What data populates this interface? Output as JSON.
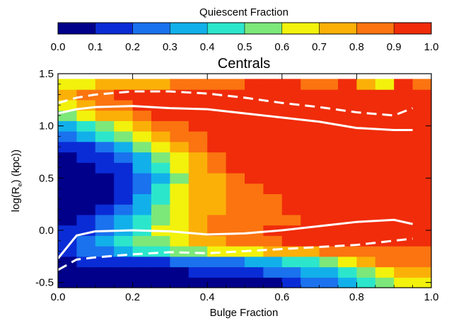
{
  "chart_data": {
    "type": "heatmap",
    "title": "Centrals",
    "xlabel": "Bulge Fraction",
    "ylabel": "log(R",
    "ylabel_sub": "e",
    "ylabel_tail": ") (kpc))",
    "xlim": [
      0.0,
      1.0
    ],
    "ylim": [
      -0.55,
      1.5
    ],
    "x_ticks": [
      "0.0",
      "0.2",
      "0.4",
      "0.6",
      "0.8",
      "1.0"
    ],
    "y_ticks": [
      "-0.5",
      "0.0",
      "0.5",
      "1.0",
      "1.5"
    ],
    "colorbar": {
      "title": "Quiescent Fraction",
      "ticks": [
        "0.0",
        "0.1",
        "0.2",
        "0.3",
        "0.4",
        "0.5",
        "0.6",
        "0.7",
        "0.8",
        "0.9",
        "1.0"
      ],
      "levels": [
        0.0,
        0.1,
        0.2,
        0.3,
        0.4,
        0.5,
        0.6,
        0.7,
        0.8,
        0.9,
        1.0
      ],
      "colors": [
        "#00008b",
        "#0a2cd6",
        "#1a72ee",
        "#12b0ea",
        "#2ce6cc",
        "#7ce87a",
        "#f2f20c",
        "#fbb008",
        "#fb7410",
        "#f02c0a",
        "#c20707"
      ]
    },
    "grid_x_bulge_fraction": [
      0.0,
      0.05,
      0.1,
      0.15,
      0.2,
      0.25,
      0.3,
      0.35,
      0.4,
      0.45,
      0.5,
      0.55,
      0.6,
      0.65,
      0.7,
      0.75,
      0.8,
      0.85,
      0.9,
      0.95
    ],
    "grid_y_log_re": [
      -0.5,
      -0.4,
      -0.3,
      -0.2,
      -0.1,
      0.0,
      0.1,
      0.2,
      0.3,
      0.4,
      0.5,
      0.6,
      0.7,
      0.8,
      0.9,
      1.0,
      1.1,
      1.2,
      1.3,
      1.4
    ],
    "quiescent_fraction_rows": [
      [
        0.02,
        0.02,
        0.03,
        0.03,
        0.04,
        0.05,
        0.05,
        0.06,
        0.06,
        0.07,
        0.08,
        0.09,
        0.15,
        0.2,
        0.25,
        0.35,
        0.45,
        0.55,
        0.62,
        0.65
      ],
      [
        0.05,
        0.05,
        0.06,
        0.06,
        0.07,
        0.08,
        0.09,
        0.1,
        0.12,
        0.15,
        0.18,
        0.22,
        0.26,
        0.32,
        0.38,
        0.42,
        0.55,
        0.65,
        0.72,
        0.75
      ],
      [
        0.08,
        0.1,
        0.12,
        0.14,
        0.16,
        0.18,
        0.2,
        0.22,
        0.25,
        0.28,
        0.32,
        0.36,
        0.42,
        0.48,
        0.55,
        0.65,
        0.75,
        0.8,
        0.82,
        0.82
      ],
      [
        0.15,
        0.2,
        0.28,
        0.36,
        0.42,
        0.48,
        0.52,
        0.56,
        0.6,
        0.63,
        0.67,
        0.7,
        0.74,
        0.78,
        0.82,
        0.84,
        0.86,
        0.87,
        0.88,
        0.88
      ],
      [
        0.18,
        0.24,
        0.32,
        0.42,
        0.5,
        0.58,
        0.64,
        0.72,
        0.78,
        0.82,
        0.86,
        0.88,
        0.9,
        0.9,
        0.9,
        0.9,
        0.9,
        0.9,
        0.9,
        0.9
      ],
      [
        0.12,
        0.18,
        0.28,
        0.38,
        0.48,
        0.6,
        0.68,
        0.75,
        0.8,
        0.84,
        0.88,
        0.9,
        0.9,
        0.9,
        0.9,
        0.9,
        0.9,
        0.9,
        0.9,
        0.9
      ],
      [
        0.08,
        0.12,
        0.2,
        0.3,
        0.45,
        0.56,
        0.66,
        0.74,
        0.8,
        0.83,
        0.85,
        0.87,
        0.89,
        0.9,
        0.9,
        0.9,
        0.9,
        0.9,
        0.9,
        0.9
      ],
      [
        0.05,
        0.07,
        0.12,
        0.2,
        0.35,
        0.5,
        0.64,
        0.73,
        0.79,
        0.83,
        0.86,
        0.88,
        0.9,
        0.9,
        0.9,
        0.9,
        0.9,
        0.9,
        0.9,
        0.9
      ],
      [
        0.03,
        0.05,
        0.08,
        0.15,
        0.3,
        0.42,
        0.62,
        0.72,
        0.78,
        0.82,
        0.85,
        0.88,
        0.9,
        0.9,
        0.9,
        0.9,
        0.9,
        0.9,
        0.9,
        0.9
      ],
      [
        0.02,
        0.04,
        0.07,
        0.14,
        0.28,
        0.4,
        0.6,
        0.72,
        0.78,
        0.83,
        0.86,
        0.9,
        0.9,
        0.9,
        0.9,
        0.9,
        0.9,
        0.9,
        0.9,
        0.9
      ],
      [
        0.02,
        0.04,
        0.07,
        0.14,
        0.27,
        0.38,
        0.58,
        0.72,
        0.79,
        0.86,
        0.9,
        0.9,
        0.9,
        0.9,
        0.9,
        0.9,
        0.9,
        0.9,
        0.9,
        0.9
      ],
      [
        0.02,
        0.05,
        0.1,
        0.18,
        0.3,
        0.42,
        0.6,
        0.74,
        0.84,
        0.9,
        0.9,
        0.9,
        0.9,
        0.9,
        0.9,
        0.9,
        0.9,
        0.9,
        0.9,
        0.9
      ],
      [
        0.05,
        0.1,
        0.17,
        0.26,
        0.38,
        0.5,
        0.65,
        0.78,
        0.88,
        0.9,
        0.9,
        0.9,
        0.9,
        0.9,
        0.9,
        0.9,
        0.9,
        0.9,
        0.9,
        0.9
      ],
      [
        0.1,
        0.18,
        0.28,
        0.38,
        0.5,
        0.62,
        0.74,
        0.84,
        0.9,
        0.9,
        0.9,
        0.9,
        0.9,
        0.9,
        0.9,
        0.9,
        0.9,
        0.9,
        0.9,
        0.9
      ],
      [
        0.2,
        0.3,
        0.4,
        0.52,
        0.64,
        0.74,
        0.82,
        0.88,
        0.9,
        0.9,
        0.9,
        0.9,
        0.9,
        0.9,
        0.9,
        0.9,
        0.9,
        0.9,
        0.9,
        0.9
      ],
      [
        0.35,
        0.45,
        0.56,
        0.66,
        0.75,
        0.82,
        0.88,
        0.9,
        0.9,
        0.9,
        0.9,
        0.9,
        0.9,
        0.9,
        0.9,
        0.9,
        0.9,
        0.9,
        0.9,
        0.9
      ],
      [
        0.5,
        0.6,
        0.7,
        0.78,
        0.85,
        0.9,
        0.9,
        0.9,
        0.9,
        0.9,
        0.9,
        0.9,
        0.9,
        0.9,
        0.9,
        0.9,
        0.9,
        0.9,
        0.9,
        0.9
      ],
      [
        0.6,
        0.72,
        0.82,
        0.88,
        0.9,
        0.9,
        0.9,
        0.9,
        0.9,
        0.9,
        0.9,
        0.9,
        0.9,
        0.9,
        0.9,
        0.9,
        0.9,
        0.9,
        0.9,
        0.9
      ],
      [
        0.7,
        0.8,
        0.85,
        0.9,
        0.9,
        0.9,
        0.9,
        0.9,
        0.9,
        0.9,
        0.9,
        0.9,
        0.9,
        0.9,
        0.9,
        0.9,
        0.9,
        0.9,
        0.9,
        0.9
      ],
      [
        0.6,
        0.65,
        0.7,
        0.72,
        0.75,
        0.78,
        0.8,
        0.82,
        0.85,
        0.88,
        0.9,
        0.9,
        0.9,
        0.88,
        0.86,
        0.9,
        0.75,
        0.6,
        0.9,
        0.8
      ]
    ],
    "overlay_lines": [
      {
        "style": "solid",
        "color": "#ffffff",
        "x": [
          0.0,
          0.05,
          0.1,
          0.2,
          0.3,
          0.4,
          0.5,
          0.6,
          0.7,
          0.8,
          0.9,
          0.95
        ],
        "y": [
          1.12,
          1.16,
          1.18,
          1.19,
          1.17,
          1.16,
          1.12,
          1.08,
          1.04,
          0.98,
          0.96,
          0.96
        ]
      },
      {
        "style": "dashed",
        "color": "#ffffff",
        "x": [
          0.0,
          0.05,
          0.1,
          0.2,
          0.3,
          0.4,
          0.5,
          0.6,
          0.7,
          0.8,
          0.9,
          0.95
        ],
        "y": [
          1.22,
          1.27,
          1.3,
          1.33,
          1.33,
          1.31,
          1.27,
          1.22,
          1.18,
          1.13,
          1.1,
          1.17
        ]
      },
      {
        "style": "solid",
        "color": "#ffffff",
        "x": [
          0.0,
          0.05,
          0.1,
          0.2,
          0.3,
          0.4,
          0.5,
          0.6,
          0.7,
          0.8,
          0.9,
          0.95
        ],
        "y": [
          -0.27,
          -0.05,
          -0.01,
          0.0,
          -0.01,
          -0.04,
          -0.03,
          0.0,
          0.04,
          0.08,
          0.1,
          0.06
        ]
      },
      {
        "style": "dashed",
        "color": "#ffffff",
        "x": [
          0.0,
          0.05,
          0.1,
          0.2,
          0.3,
          0.4,
          0.5,
          0.6,
          0.7,
          0.8,
          0.9,
          0.95
        ],
        "y": [
          -0.38,
          -0.28,
          -0.26,
          -0.23,
          -0.21,
          -0.22,
          -0.2,
          -0.18,
          -0.16,
          -0.14,
          -0.1,
          -0.08
        ]
      }
    ]
  }
}
